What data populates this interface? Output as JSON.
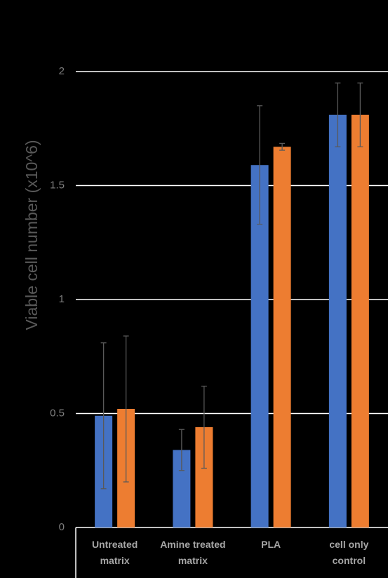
{
  "chart_data": {
    "type": "bar",
    "y_label": "Viable cell number (x10^6)",
    "categories": [
      "Untreated matrix",
      "Amine treated matrix",
      "PLA",
      "cell only control"
    ],
    "series": [
      {
        "color": "#4472c4",
        "values": [
          0.49,
          0.34,
          1.59,
          1.81
        ],
        "errors": [
          0.32,
          0.09,
          0.26,
          0.14
        ]
      },
      {
        "color": "#ed7d31",
        "values": [
          0.52,
          0.44,
          1.67,
          1.81
        ],
        "errors": [
          0.32,
          0.18,
          0.015,
          0.14
        ]
      }
    ],
    "ylim": [
      0,
      2
    ],
    "yticks": [
      0,
      0.5,
      1,
      1.5,
      2
    ],
    "grid": true
  }
}
